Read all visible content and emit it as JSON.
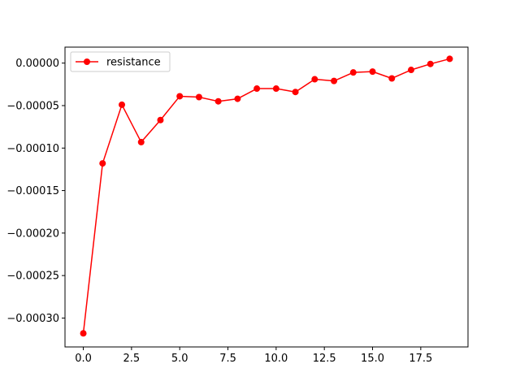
{
  "chart_data": {
    "type": "line",
    "title": "",
    "xlabel": "",
    "ylabel": "",
    "xlim": [
      -0.95,
      19.95
    ],
    "ylim": [
      -0.000334,
      1.88e-05
    ],
    "grid": false,
    "legend_position": "top-left",
    "x_ticks": [
      0.0,
      2.5,
      5.0,
      7.5,
      10.0,
      12.5,
      15.0,
      17.5
    ],
    "x_tick_labels": [
      "0.0",
      "2.5",
      "5.0",
      "7.5",
      "10.0",
      "12.5",
      "15.0",
      "17.5"
    ],
    "y_ticks": [
      -0.0003,
      -0.00025,
      -0.0002,
      -0.00015,
      -0.0001,
      -5e-05,
      0.0
    ],
    "y_tick_labels": [
      "−0.00030",
      "−0.00025",
      "−0.00020",
      "−0.00015",
      "−0.00010",
      "−0.00005",
      "0.00000"
    ],
    "series": [
      {
        "name": "resistance",
        "color": "#ff0000",
        "marker": "circle",
        "x": [
          0,
          1,
          2,
          3,
          4,
          5,
          6,
          7,
          8,
          9,
          10,
          11,
          12,
          13,
          14,
          15,
          16,
          17,
          18,
          19
        ],
        "values": [
          -0.000318,
          -0.000118,
          -4.9e-05,
          -9.3e-05,
          -6.7e-05,
          -3.9e-05,
          -4e-05,
          -4.5e-05,
          -4.2e-05,
          -3e-05,
          -3e-05,
          -3.4e-05,
          -1.9e-05,
          -2.1e-05,
          -1.1e-05,
          -1e-05,
          -1.8e-05,
          -8e-06,
          -1e-06,
          5e-06
        ]
      }
    ]
  }
}
